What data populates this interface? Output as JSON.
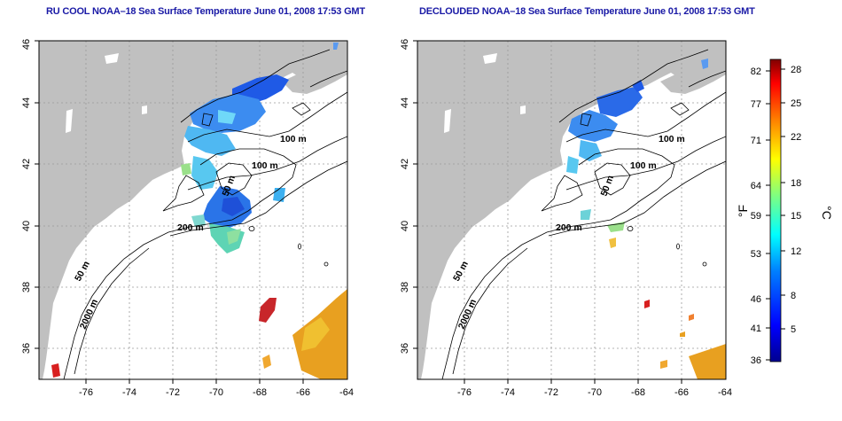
{
  "left_map": {
    "title": "RU COOL NOAA–18 Sea Surface Temperature June 01, 2008 17:53 GMT"
  },
  "right_map": {
    "title": "DECLOUDED NOAA–18 Sea Surface Temperature June 01, 2008 17:53 GMT"
  },
  "axes": {
    "lon_ticks": [
      "-76",
      "-74",
      "-72",
      "-70",
      "-68",
      "-66",
      "-64"
    ],
    "lat_ticks": [
      "36",
      "38",
      "40",
      "42",
      "44",
      "46"
    ]
  },
  "contour_labels": {
    "left": [
      "100 m",
      "100 m",
      "50 m",
      "200 m",
      "50 m",
      "2000 m"
    ],
    "right": [
      "100 m",
      "100 m",
      "50 m",
      "200 m",
      "50 m",
      "2000 m"
    ]
  },
  "colorbar": {
    "unit_f": "°F",
    "unit_c": "°C",
    "f_ticks": [
      "82",
      "77",
      "71",
      "64",
      "59",
      "53",
      "46",
      "41",
      "36"
    ],
    "c_ticks": [
      "28",
      "25",
      "22",
      "18",
      "15",
      "12",
      "8",
      "5"
    ]
  },
  "colors": {
    "land": "#c0c0c0",
    "title": "#1a1aa6",
    "cold": "#0000a0",
    "warm": "#a00000"
  }
}
